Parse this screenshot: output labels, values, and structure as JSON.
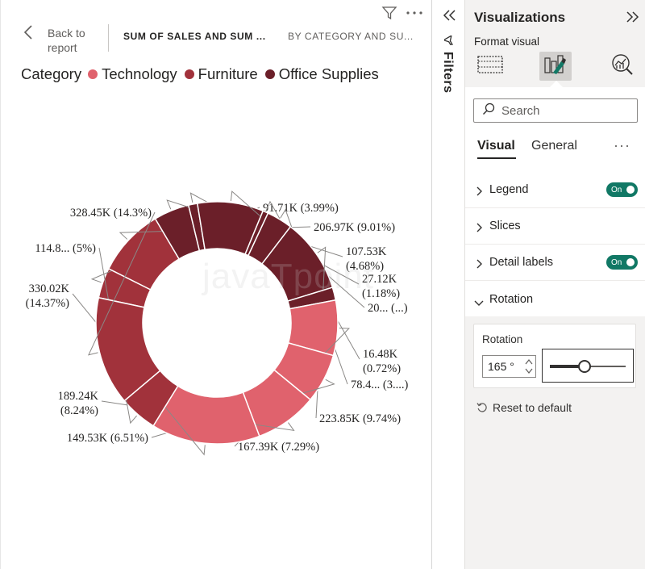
{
  "canvas": {
    "back_label": "Back to report",
    "title_left": "SUM OF SALES AND SUM ...",
    "title_right": "BY CATEGORY AND SU...",
    "icons": [
      "filter-icon",
      "more-options-icon",
      "chevron-left-icon"
    ],
    "watermark": "javaTpoint"
  },
  "legend": {
    "title": "Category",
    "items": [
      {
        "label": "Technology",
        "color": "#e0626d"
      },
      {
        "label": "Furniture",
        "color": "#a1323b"
      },
      {
        "label": "Office Supplies",
        "color": "#6b1f29"
      }
    ]
  },
  "chart_data": {
    "type": "pie",
    "variant": "donut",
    "rotation_degrees": 165,
    "legend_title": "Category",
    "categories": [
      "Technology",
      "Furniture",
      "Office Supplies"
    ],
    "colors": {
      "Technology": "#e0626d",
      "Furniture": "#a1323b",
      "Office Supplies": "#6b1f29"
    },
    "slices": [
      {
        "category": "Furniture",
        "value": 91.71,
        "percent": 3.99,
        "label_lines": [
          "91.71K (3.99%)"
        ]
      },
      {
        "category": "Furniture",
        "value": 206.97,
        "percent": 9.01,
        "label_lines": [
          "206.97K (9.01%)"
        ]
      },
      {
        "category": "Office Supplies",
        "value": 107.53,
        "percent": 4.68,
        "label_lines": [
          "107.53K",
          "(4.68%)"
        ]
      },
      {
        "category": "Office Supplies",
        "value": 27.12,
        "percent": 1.18,
        "label_lines": [
          "27.12K",
          "(1.18%)"
        ]
      },
      {
        "category": "Office Supplies",
        "value": 200,
        "percent": 8.71,
        "label_lines": [
          "20... (...)"
        ]
      },
      {
        "category": "Office Supplies",
        "value": 16.48,
        "percent": 0.72,
        "label_lines": [
          "16.48K",
          "(0.72%)"
        ]
      },
      {
        "category": "Office Supplies",
        "value": 78.4,
        "percent": 3.4,
        "label_lines": [
          "78.4... (3....)"
        ]
      },
      {
        "category": "Office Supplies",
        "value": 223.85,
        "percent": 9.74,
        "label_lines": [
          "223.85K (9.74%)"
        ]
      },
      {
        "category": "Office Supplies",
        "value": 39,
        "percent": 1.7,
        "label_lines": []
      },
      {
        "category": "Technology",
        "value": 167.39,
        "percent": 7.29,
        "label_lines": [
          "167.39K (7.29%)"
        ]
      },
      {
        "category": "Technology",
        "value": 149.53,
        "percent": 6.51,
        "label_lines": [
          "149.53K (6.51%)"
        ]
      },
      {
        "category": "Technology",
        "value": 189.24,
        "percent": 8.24,
        "label_lines": [
          "189.24K",
          "(8.24%)"
        ]
      },
      {
        "category": "Technology",
        "value": 330.02,
        "percent": 14.37,
        "label_lines": [
          "330.02K",
          "(14.37%)"
        ]
      },
      {
        "category": "Furniture",
        "value": 114.8,
        "percent": 5.0,
        "label_lines": [
          "114.8... (5%)"
        ]
      },
      {
        "category": "Furniture",
        "value": 328.45,
        "percent": 14.3,
        "label_lines": [
          "328.45K (14.3%)"
        ]
      }
    ]
  },
  "filters": {
    "label": "Filters",
    "icons": [
      "chevron-double-left-icon",
      "filter-icon"
    ]
  },
  "viz_pane": {
    "title": "Visualizations",
    "subtitle": "Format visual",
    "icons": [
      "build-visual-icon",
      "format-visual-icon",
      "analytics-icon",
      "chevron-double-right-icon"
    ],
    "search_placeholder": "Search",
    "tabs": [
      {
        "label": "Visual",
        "active": true
      },
      {
        "label": "General",
        "active": false
      }
    ],
    "more": "···",
    "sections": [
      {
        "label": "Legend",
        "expanded": false,
        "toggle": "On"
      },
      {
        "label": "Slices",
        "expanded": false,
        "toggle": null
      },
      {
        "label": "Detail labels",
        "expanded": false,
        "toggle": "On"
      },
      {
        "label": "Rotation",
        "expanded": true,
        "toggle": null
      }
    ],
    "rotation": {
      "label": "Rotation",
      "value": "165 °",
      "slider_fraction": 0.46
    },
    "reset_label": "Reset to default",
    "accent_color": "#117865"
  }
}
